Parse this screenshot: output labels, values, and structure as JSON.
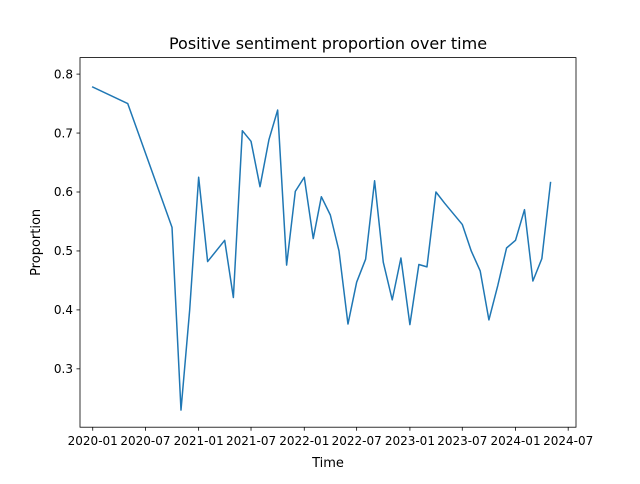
{
  "chart_data": {
    "type": "line",
    "title": "Positive sentiment proportion over time",
    "xlabel": "Time",
    "ylabel": "Proportion",
    "x_tick_labels": [
      "2020-01",
      "2020-07",
      "2021-01",
      "2021-07",
      "2022-01",
      "2022-07",
      "2023-01",
      "2023-07",
      "2024-01",
      "2024-07"
    ],
    "y_tick_labels": [
      "0.3",
      "0.4",
      "0.5",
      "0.6",
      "0.7",
      "0.8"
    ],
    "xlim": [
      "2019-11-18",
      "2024-07-28"
    ],
    "ylim": [
      0.201,
      0.828
    ],
    "grid": false,
    "legend": false,
    "line_color": "#1f77b4",
    "series": [
      {
        "x": [
          "2020-01-01",
          "2020-05-01",
          "2020-10-01",
          "2020-11-01",
          "2020-12-01",
          "2021-01-01",
          "2021-02-01",
          "2021-04-01",
          "2021-05-01",
          "2021-06-01",
          "2021-07-01",
          "2021-08-01",
          "2021-09-01",
          "2021-10-01",
          "2021-11-01",
          "2021-12-01",
          "2022-01-01",
          "2022-02-01",
          "2022-03-01",
          "2022-04-01",
          "2022-05-01",
          "2022-06-01",
          "2022-07-01",
          "2022-08-01",
          "2022-09-01",
          "2022-10-01",
          "2022-11-01",
          "2022-12-01",
          "2023-01-01",
          "2023-02-01",
          "2023-03-01",
          "2023-04-01",
          "2023-05-01",
          "2023-07-01",
          "2023-08-01",
          "2023-09-01",
          "2023-10-01",
          "2023-11-01",
          "2023-12-01",
          "2024-01-01",
          "2024-02-01",
          "2024-03-01",
          "2024-04-01",
          "2024-05-01"
        ],
        "values": [
          0.778,
          0.75,
          0.54,
          0.23,
          0.4,
          0.625,
          0.482,
          0.518,
          0.421,
          0.704,
          0.686,
          0.609,
          0.689,
          0.739,
          0.476,
          0.601,
          0.625,
          0.521,
          0.592,
          0.561,
          0.5,
          0.376,
          0.447,
          0.486,
          0.619,
          0.481,
          0.417,
          0.488,
          0.375,
          0.477,
          0.473,
          0.6,
          0.581,
          0.545,
          0.5,
          0.466,
          0.383,
          0.442,
          0.505,
          0.518,
          0.57,
          0.449,
          0.487,
          0.616
        ]
      }
    ]
  }
}
